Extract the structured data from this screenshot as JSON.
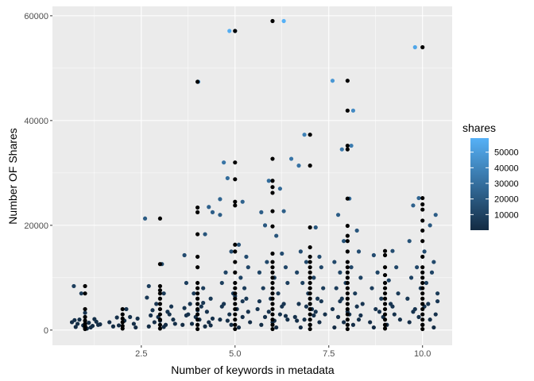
{
  "chart_data": {
    "type": "scatter",
    "title": "",
    "xlabel": "Number of keywords in metadata",
    "ylabel": "Number OF Shares",
    "xlim": [
      0.13,
      10.79
    ],
    "ylim": [
      -2900,
      61800
    ],
    "x_ticks": [
      2.5,
      5.0,
      7.5,
      10.0
    ],
    "x_tick_labels": [
      "2.5",
      "5.0",
      "7.5",
      "10.0"
    ],
    "y_ticks": [
      0,
      20000,
      40000,
      60000
    ],
    "y_tick_labels": [
      "0",
      "20000",
      "40000",
      "60000"
    ],
    "grid": true,
    "legend": {
      "title": "shares",
      "placement": "right",
      "type": "colorbar",
      "range": [
        0,
        59000
      ],
      "breaks": [
        10000,
        20000,
        30000,
        40000,
        50000
      ],
      "break_labels": [
        "10000",
        "20000",
        "30000",
        "40000",
        "50000"
      ],
      "low_color": "#132B43",
      "high_color": "#56B1F7"
    },
    "raw_point_color": "#000000",
    "jittered_points": [
      [
        0.7,
        8400
      ],
      [
        0.9,
        7000
      ],
      [
        1.25,
        2100
      ],
      [
        0.65,
        1500
      ],
      [
        0.8,
        1200
      ],
      [
        0.95,
        900
      ],
      [
        1.1,
        1400
      ],
      [
        1.2,
        800
      ],
      [
        1.35,
        1000
      ],
      [
        0.75,
        600
      ],
      [
        1.05,
        300
      ],
      [
        1.3,
        1600
      ],
      [
        0.85,
        2000
      ],
      [
        1.15,
        500
      ],
      [
        1.4,
        1100
      ],
      [
        0.72,
        1900
      ],
      [
        1.0,
        3300
      ],
      [
        2.4,
        2200
      ],
      [
        2.3,
        1200
      ],
      [
        1.9,
        900
      ],
      [
        1.65,
        1500
      ],
      [
        1.75,
        700
      ],
      [
        2.05,
        1800
      ],
      [
        2.2,
        2500
      ],
      [
        2.1,
        4000
      ],
      [
        1.85,
        2400
      ],
      [
        2.35,
        500
      ],
      [
        2.6,
        21300
      ],
      [
        3.05,
        12600
      ],
      [
        2.7,
        8400
      ],
      [
        3.1,
        7000
      ],
      [
        2.65,
        6200
      ],
      [
        2.9,
        5000
      ],
      [
        3.3,
        4500
      ],
      [
        3.2,
        3500
      ],
      [
        2.75,
        2800
      ],
      [
        3.35,
        2000
      ],
      [
        2.85,
        1500
      ],
      [
        3.15,
        1000
      ],
      [
        2.95,
        2500
      ],
      [
        3.25,
        3000
      ],
      [
        2.7,
        700
      ],
      [
        3.0,
        1800
      ],
      [
        3.4,
        1200
      ],
      [
        2.8,
        3800
      ],
      [
        3.1,
        600
      ],
      [
        4.02,
        47400
      ],
      [
        3.65,
        14300
      ],
      [
        4.2,
        18300
      ],
      [
        4.3,
        23500
      ],
      [
        4.4,
        22500
      ],
      [
        3.7,
        9000
      ],
      [
        4.15,
        8000
      ],
      [
        3.9,
        7000
      ],
      [
        4.35,
        6000
      ],
      [
        3.8,
        5000
      ],
      [
        4.1,
        4500
      ],
      [
        4.25,
        3500
      ],
      [
        3.75,
        3000
      ],
      [
        3.95,
        2500
      ],
      [
        4.05,
        2000
      ],
      [
        4.3,
        1500
      ],
      [
        3.6,
        1000
      ],
      [
        4.4,
        2200
      ],
      [
        3.85,
        1200
      ],
      [
        4.2,
        700
      ],
      [
        3.7,
        2800
      ],
      [
        4.0,
        3800
      ],
      [
        4.15,
        5200
      ],
      [
        3.65,
        4200
      ],
      [
        4.35,
        900
      ],
      [
        4.85,
        57100
      ],
      [
        5.0,
        57100
      ],
      [
        4.6,
        25000
      ],
      [
        4.8,
        29000
      ],
      [
        4.7,
        32000
      ],
      [
        5.2,
        24500
      ],
      [
        4.6,
        22000
      ],
      [
        5.3,
        14000
      ],
      [
        4.9,
        15000
      ],
      [
        5.1,
        16300
      ],
      [
        5.35,
        12000
      ],
      [
        4.75,
        11000
      ],
      [
        5.15,
        10000
      ],
      [
        4.65,
        9000
      ],
      [
        5.25,
        8000
      ],
      [
        4.95,
        7000
      ],
      [
        5.3,
        6000
      ],
      [
        4.7,
        5000
      ],
      [
        5.05,
        4000
      ],
      [
        4.85,
        3000
      ],
      [
        5.2,
        2500
      ],
      [
        4.6,
        2000
      ],
      [
        5.4,
        1500
      ],
      [
        4.9,
        1000
      ],
      [
        5.1,
        500
      ],
      [
        4.8,
        1800
      ],
      [
        5.35,
        3500
      ],
      [
        4.65,
        4500
      ],
      [
        5.0,
        6500
      ],
      [
        5.2,
        5500
      ],
      [
        6.3,
        59000
      ],
      [
        6.5,
        32700
      ],
      [
        5.9,
        28500
      ],
      [
        6.2,
        27000
      ],
      [
        6.3,
        22700
      ],
      [
        5.7,
        22500
      ],
      [
        5.8,
        20000
      ],
      [
        6.1,
        18000
      ],
      [
        6.25,
        14600
      ],
      [
        5.85,
        13000
      ],
      [
        6.35,
        12000
      ],
      [
        5.65,
        11000
      ],
      [
        6.05,
        10000
      ],
      [
        6.4,
        9000
      ],
      [
        5.75,
        8000
      ],
      [
        6.15,
        7000
      ],
      [
        5.95,
        6000
      ],
      [
        6.3,
        5000
      ],
      [
        5.6,
        4000
      ],
      [
        6.2,
        3000
      ],
      [
        5.8,
        2500
      ],
      [
        6.4,
        2000
      ],
      [
        6.0,
        1500
      ],
      [
        5.7,
        1000
      ],
      [
        6.1,
        500
      ],
      [
        5.9,
        3500
      ],
      [
        6.25,
        4500
      ],
      [
        5.65,
        5500
      ],
      [
        6.35,
        2700
      ],
      [
        6.05,
        1800
      ],
      [
        6.7,
        31400
      ],
      [
        6.85,
        37300
      ],
      [
        7.15,
        19600
      ],
      [
        6.75,
        15000
      ],
      [
        7.25,
        14000
      ],
      [
        6.9,
        13000
      ],
      [
        7.3,
        12000
      ],
      [
        6.65,
        11000
      ],
      [
        7.1,
        10000
      ],
      [
        6.8,
        9000
      ],
      [
        7.35,
        8000
      ],
      [
        6.95,
        7000
      ],
      [
        7.2,
        6000
      ],
      [
        6.7,
        5000
      ],
      [
        7.05,
        4000
      ],
      [
        7.4,
        3000
      ],
      [
        6.6,
        2500
      ],
      [
        6.85,
        2000
      ],
      [
        7.25,
        1500
      ],
      [
        7.0,
        1000
      ],
      [
        6.75,
        500
      ],
      [
        7.15,
        3500
      ],
      [
        6.9,
        4500
      ],
      [
        7.3,
        5500
      ],
      [
        6.65,
        1800
      ],
      [
        7.1,
        2800
      ],
      [
        7.6,
        47600
      ],
      [
        8.15,
        41900
      ],
      [
        8.1,
        35200
      ],
      [
        7.85,
        34500
      ],
      [
        8.05,
        25100
      ],
      [
        7.75,
        22000
      ],
      [
        8.25,
        19000
      ],
      [
        7.9,
        17000
      ],
      [
        8.3,
        15000
      ],
      [
        7.65,
        13000
      ],
      [
        8.1,
        12000
      ],
      [
        7.8,
        11000
      ],
      [
        8.35,
        10000
      ],
      [
        7.95,
        9000
      ],
      [
        7.7,
        8000
      ],
      [
        8.2,
        7000
      ],
      [
        7.85,
        6000
      ],
      [
        8.4,
        5000
      ],
      [
        7.6,
        4000
      ],
      [
        8.05,
        3000
      ],
      [
        7.75,
        2500
      ],
      [
        8.3,
        2000
      ],
      [
        7.9,
        1500
      ],
      [
        8.15,
        1000
      ],
      [
        7.65,
        500
      ],
      [
        8.0,
        3500
      ],
      [
        8.25,
        4500
      ],
      [
        7.8,
        5500
      ],
      [
        8.35,
        2800
      ],
      [
        8.7,
        14300
      ],
      [
        9.2,
        15100
      ],
      [
        9.3,
        12000
      ],
      [
        8.8,
        11000
      ],
      [
        9.1,
        9500
      ],
      [
        8.65,
        8000
      ],
      [
        9.35,
        7000
      ],
      [
        8.9,
        6000
      ],
      [
        9.15,
        5000
      ],
      [
        8.75,
        4000
      ],
      [
        9.25,
        3000
      ],
      [
        8.95,
        2500
      ],
      [
        9.4,
        2000
      ],
      [
        8.6,
        1500
      ],
      [
        9.05,
        1000
      ],
      [
        8.85,
        3500
      ],
      [
        9.2,
        4500
      ],
      [
        8.7,
        500
      ],
      [
        9.8,
        54000
      ],
      [
        9.75,
        23800
      ],
      [
        10.35,
        22000
      ],
      [
        9.9,
        25200
      ],
      [
        10.2,
        20000
      ],
      [
        9.65,
        17000
      ],
      [
        10.05,
        15000
      ],
      [
        10.3,
        13000
      ],
      [
        9.85,
        12000
      ],
      [
        10.25,
        11000
      ],
      [
        9.7,
        10000
      ],
      [
        10.1,
        9000
      ],
      [
        9.95,
        8000
      ],
      [
        10.4,
        7000
      ],
      [
        9.6,
        6000
      ],
      [
        10.15,
        5000
      ],
      [
        9.8,
        4000
      ],
      [
        10.35,
        3000
      ],
      [
        9.9,
        2500
      ],
      [
        10.2,
        2000
      ],
      [
        9.65,
        1500
      ],
      [
        10.0,
        1000
      ],
      [
        10.3,
        500
      ],
      [
        9.75,
        3500
      ],
      [
        10.05,
        4500
      ],
      [
        10.4,
        5500
      ]
    ],
    "raw_points": [
      {
        "x": 1,
        "y": [
          8400,
          7000,
          4000,
          2500,
          1800,
          1200,
          800,
          500,
          200
        ]
      },
      {
        "x": 2,
        "y": [
          4000,
          3000,
          2200,
          1500,
          800,
          300
        ]
      },
      {
        "x": 3,
        "y": [
          21300,
          12600,
          8400,
          7600,
          7000,
          6000,
          5000,
          4000,
          3000,
          2000,
          1000,
          300
        ]
      },
      {
        "x": 4,
        "y": [
          47400,
          23400,
          22500,
          18300,
          14000,
          12000,
          9000,
          8000,
          7000,
          6000,
          5000,
          4000,
          3000,
          2000,
          1000,
          200
        ]
      },
      {
        "x": 5,
        "y": [
          57100,
          32000,
          28800,
          24500,
          23800,
          16300,
          15000,
          13000,
          11000,
          9000,
          8000,
          7000,
          6000,
          5000,
          4000,
          3000,
          2000,
          1000,
          200
        ]
      },
      {
        "x": 6,
        "y": [
          59000,
          32700,
          28500,
          27300,
          26200,
          22700,
          19800,
          14600,
          13000,
          12000,
          11000,
          10000,
          9000,
          8000,
          7000,
          6000,
          5000,
          4000,
          3000,
          2000,
          1000,
          200
        ]
      },
      {
        "x": 7,
        "y": [
          37300,
          31400,
          19600,
          15800,
          14000,
          13000,
          12000,
          11000,
          10000,
          9000,
          8000,
          7000,
          6000,
          5000,
          4000,
          3000,
          2000,
          1000,
          200
        ]
      },
      {
        "x": 8,
        "y": [
          47600,
          41900,
          35200,
          34500,
          25100,
          19900,
          18000,
          17000,
          15000,
          13000,
          12000,
          11000,
          10000,
          9000,
          8000,
          7000,
          6000,
          5000,
          4000,
          3000,
          2000,
          1000,
          200
        ]
      },
      {
        "x": 9,
        "y": [
          15100,
          14300,
          12000,
          10500,
          9000,
          8000,
          7000,
          6000,
          5000,
          4000,
          3000,
          2000,
          1000,
          300
        ]
      },
      {
        "x": 10,
        "y": [
          54000,
          25200,
          24000,
          23000,
          20900,
          19000,
          17000,
          14000,
          12000,
          11000,
          10000,
          9000,
          8000,
          7000,
          6000,
          5000,
          4000,
          3000,
          2000,
          1000,
          200
        ]
      }
    ]
  }
}
